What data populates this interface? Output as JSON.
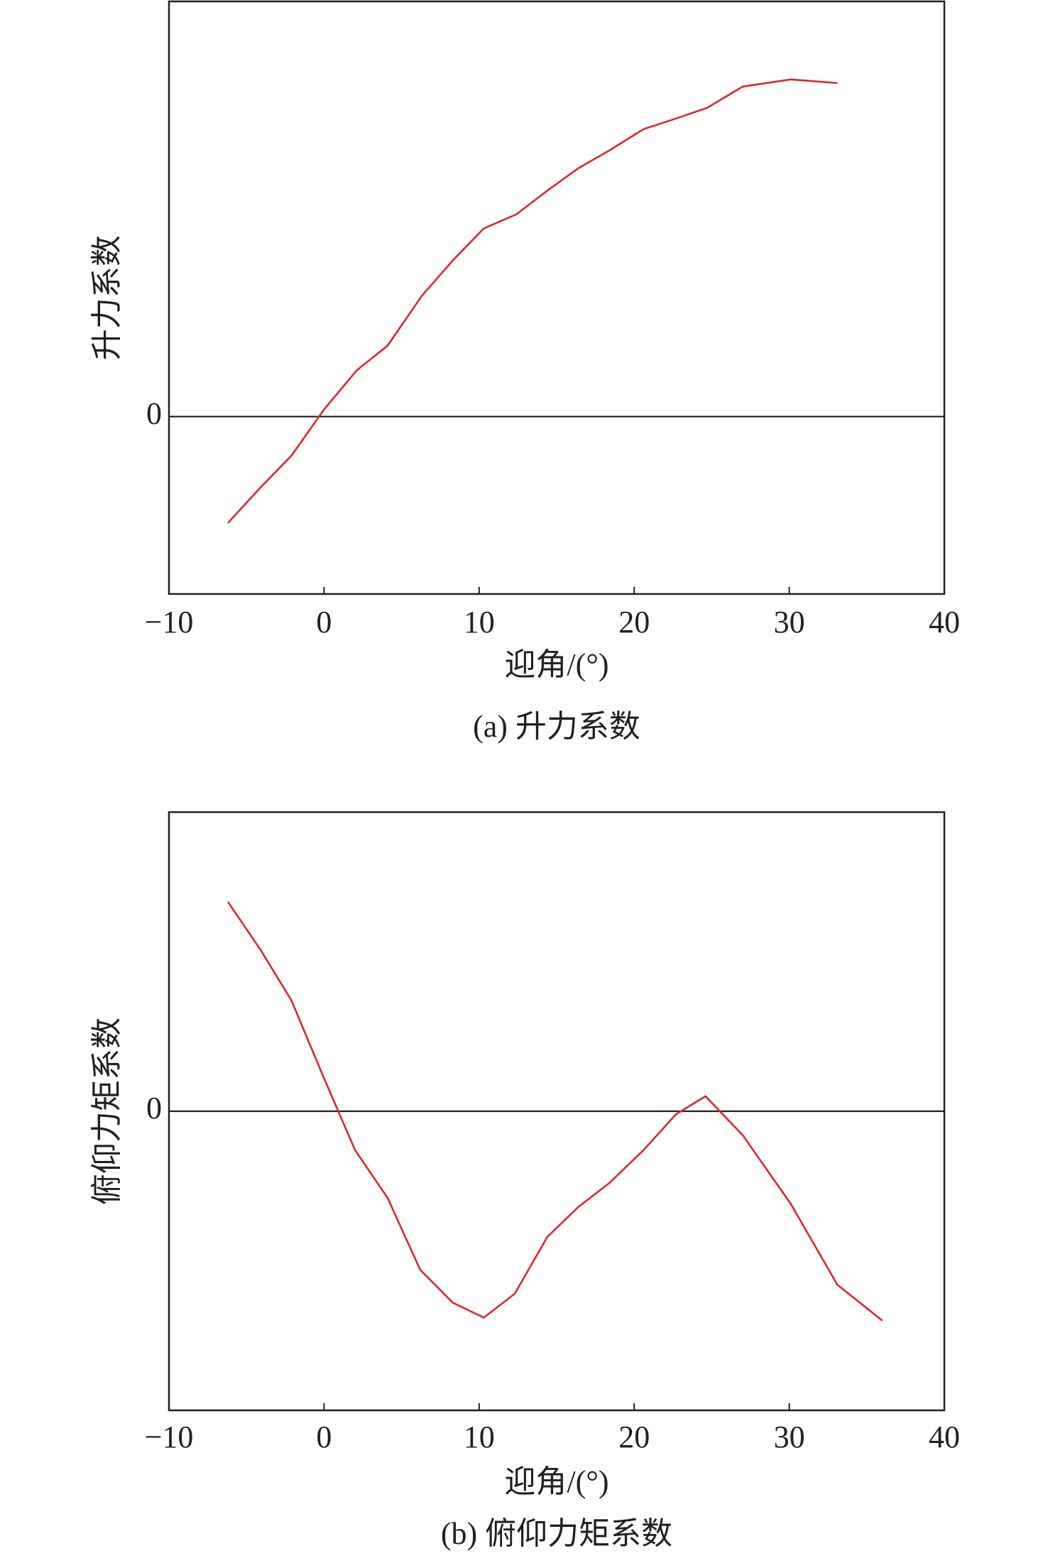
{
  "chart_data": [
    {
      "type": "line",
      "caption": "(a) 升力系数",
      "xlabel": "迎角/(°)",
      "ylabel": "升力系数",
      "x": [
        -6.2,
        -4.1,
        -2.1,
        0,
        2.1,
        4.1,
        6.3,
        8.3,
        10.3,
        12.4,
        14.5,
        16.4,
        18.4,
        20.6,
        22.7,
        24.7,
        27.0,
        30.1,
        33.1
      ],
      "series": [
        {
          "color": "#d7282f",
          "values": [
            -0.3,
            -0.2,
            -0.11,
            0.02,
            0.13,
            0.2,
            0.34,
            0.44,
            0.53,
            0.57,
            0.64,
            0.7,
            0.75,
            0.81,
            0.84,
            0.87,
            0.93,
            0.95,
            0.94
          ]
        }
      ],
      "xlim": [
        -10,
        40
      ],
      "xticks": [
        {
          "value": -10,
          "label": "−10"
        },
        0,
        10,
        20,
        30,
        40
      ],
      "ylim": [
        -0.5,
        1.17
      ],
      "yticks": [
        0
      ]
    },
    {
      "type": "line",
      "caption": "(b) 俯仰力矩系数",
      "xlabel": "迎角/(°)",
      "ylabel": "俯仰力矩系数",
      "x": [
        -6.2,
        -4.1,
        -2.1,
        0,
        2.0,
        4.1,
        6.2,
        8.3,
        10.3,
        12.3,
        14.4,
        16.4,
        18.4,
        20.6,
        22.7,
        24.6,
        27.0,
        30.1,
        33.1,
        36.0
      ],
      "series": [
        {
          "color": "#d7282f",
          "values": [
            0.7,
            0.54,
            0.37,
            0.11,
            -0.13,
            -0.29,
            -0.53,
            -0.64,
            -0.69,
            -0.61,
            -0.42,
            -0.32,
            -0.24,
            -0.13,
            -0.01,
            0.05,
            -0.08,
            -0.31,
            -0.58,
            -0.7
          ]
        }
      ],
      "xlim": [
        -10,
        40
      ],
      "xticks": [
        {
          "value": -10,
          "label": "−10"
        },
        0,
        10,
        20,
        30,
        40
      ],
      "ylim": [
        -1,
        1
      ],
      "yticks": [
        0
      ]
    }
  ]
}
